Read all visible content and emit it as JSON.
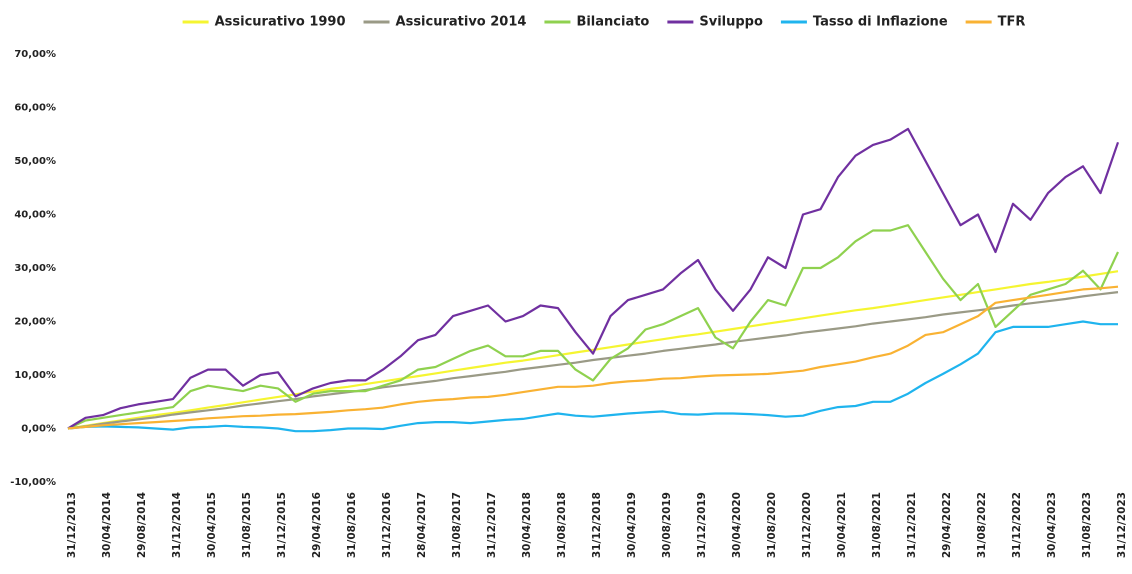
{
  "chart_data": {
    "type": "line",
    "categories": [
      "31/12/2013",
      null,
      "30/04/2014",
      null,
      "29/08/2014",
      null,
      "31/12/2014",
      null,
      "30/04/2015",
      null,
      "31/08/2015",
      null,
      "31/12/2015",
      null,
      "29/04/2016",
      null,
      "31/08/2016",
      null,
      "31/12/2016",
      null,
      "28/04/2017",
      null,
      "31/08/2017",
      null,
      "31/12/2017",
      null,
      "30/04/2018",
      null,
      "31/08/2018",
      null,
      "31/12/2018",
      null,
      "30/04/2019",
      null,
      "30/08/2019",
      null,
      "31/12/2019",
      null,
      "30/04/2020",
      null,
      "31/08/2020",
      null,
      "31/12/2020",
      null,
      "30/04/2021",
      null,
      "31/08/2021",
      null,
      "31/12/2021",
      null,
      "29/04/2022",
      null,
      "31/08/2022",
      null,
      "31/12/2022",
      null,
      "30/04/2023",
      null,
      "31/08/2023",
      null,
      "31/12/2023"
    ],
    "series": [
      {
        "name": "Assicurativo 1990",
        "color": "#f5f531",
        "values": [
          0,
          0.5,
          1,
          1.5,
          2,
          2.5,
          2.9,
          3.4,
          3.9,
          4.4,
          4.9,
          5.4,
          5.9,
          6.4,
          6.9,
          7.4,
          7.8,
          8.3,
          8.8,
          9.3,
          9.8,
          10.3,
          10.8,
          11.3,
          11.8,
          12.3,
          12.7,
          13.2,
          13.7,
          14.2,
          14.7,
          15.2,
          15.7,
          16.2,
          16.7,
          17.2,
          17.6,
          18.1,
          18.6,
          19.1,
          19.6,
          20.1,
          20.6,
          21.1,
          21.6,
          22.1,
          22.5,
          23,
          23.5,
          24,
          24.5,
          25,
          25.5,
          26,
          26.5,
          27,
          27.4,
          27.9,
          28.4,
          28.9,
          29.4
        ]
      },
      {
        "name": "Assicurativo 2014",
        "color": "#9a9a86",
        "values": [
          0,
          0.4,
          0.9,
          1.3,
          1.7,
          2.1,
          2.6,
          3,
          3.4,
          3.8,
          4.3,
          4.7,
          5.1,
          5.5,
          6,
          6.4,
          6.8,
          7.2,
          7.7,
          8.1,
          8.5,
          8.9,
          9.4,
          9.8,
          10.2,
          10.6,
          11.1,
          11.5,
          11.9,
          12.3,
          12.8,
          13.2,
          13.6,
          14,
          14.5,
          14.9,
          15.3,
          15.7,
          16.2,
          16.6,
          17,
          17.4,
          17.9,
          18.3,
          18.7,
          19.1,
          19.6,
          20,
          20.4,
          20.8,
          21.3,
          21.7,
          22.1,
          22.5,
          23,
          23.4,
          23.8,
          24.2,
          24.7,
          25.1,
          25.5
        ]
      },
      {
        "name": "Bilanciato",
        "color": "#8fd14f",
        "values": [
          0,
          1.5,
          2,
          2.5,
          3,
          3.5,
          4,
          7,
          8,
          7.5,
          7,
          8,
          7.5,
          5,
          6.5,
          7,
          7,
          7,
          8,
          9,
          11,
          11.5,
          13,
          14.5,
          15.5,
          13.5,
          13.5,
          14.5,
          14.5,
          11,
          9,
          13,
          15,
          18.5,
          19.5,
          21,
          22.5,
          17,
          15,
          20,
          24,
          23,
          30,
          30,
          32,
          35,
          37,
          37,
          38,
          33,
          28,
          24,
          27,
          19,
          22,
          25,
          26,
          27,
          29.5,
          26,
          33
        ]
      },
      {
        "name": "Sviluppo",
        "color": "#7030a0",
        "values": [
          0,
          2,
          2.5,
          3.8,
          4.5,
          5,
          5.5,
          9.5,
          11,
          11,
          8,
          10,
          10.5,
          6,
          7.5,
          8.5,
          9,
          9,
          11,
          13.5,
          16.5,
          17.5,
          21,
          22,
          23,
          20,
          21,
          23,
          22.5,
          18,
          14,
          21,
          24,
          25,
          26,
          29,
          31.5,
          26,
          22,
          26,
          32,
          30,
          40,
          41,
          47,
          51,
          53,
          54,
          56,
          50,
          44,
          38,
          40,
          33,
          42,
          39,
          44,
          47,
          49,
          44,
          53.5
        ]
      },
      {
        "name": "Tasso di Inflazione",
        "color": "#1fb4ee",
        "values": [
          0,
          0.3,
          0.4,
          0.3,
          0.2,
          0,
          -0.2,
          0.2,
          0.3,
          0.5,
          0.3,
          0.2,
          0,
          -0.5,
          -0.5,
          -0.3,
          0,
          0,
          -0.1,
          0.5,
          1,
          1.2,
          1.2,
          1,
          1.3,
          1.6,
          1.8,
          2.3,
          2.8,
          2.4,
          2.2,
          2.5,
          2.8,
          3,
          3.2,
          2.7,
          2.6,
          2.8,
          2.8,
          2.7,
          2.5,
          2.2,
          2.4,
          3.3,
          4,
          4.2,
          5,
          5,
          6.5,
          8.5,
          10.2,
          12,
          14,
          18,
          19,
          19,
          19,
          19.5,
          20,
          19.5,
          19.5
        ]
      },
      {
        "name": "TFR",
        "color": "#f9b233",
        "values": [
          0,
          0.3,
          0.6,
          0.8,
          1,
          1.2,
          1.4,
          1.6,
          1.9,
          2.1,
          2.3,
          2.4,
          2.6,
          2.7,
          2.9,
          3.1,
          3.4,
          3.6,
          3.9,
          4.5,
          5,
          5.3,
          5.5,
          5.8,
          5.9,
          6.3,
          6.8,
          7.3,
          7.8,
          7.8,
          8,
          8.5,
          8.8,
          9,
          9.3,
          9.4,
          9.7,
          9.9,
          10,
          10.1,
          10.2,
          10.5,
          10.8,
          11.5,
          12,
          12.5,
          13.3,
          14,
          15.5,
          17.5,
          18,
          19.5,
          21,
          23.5,
          24,
          24.5,
          25,
          25.5,
          26,
          26.2,
          26.5
        ]
      }
    ],
    "ylim": [
      -10,
      70
    ],
    "yticks": [
      {
        "value": -10,
        "label": "-10,00%"
      },
      {
        "value": 0,
        "label": "0,00%"
      },
      {
        "value": 10,
        "label": "10,00%"
      },
      {
        "value": 20,
        "label": "20,00%"
      },
      {
        "value": 30,
        "label": "30,00%"
      },
      {
        "value": 40,
        "label": "40,00%"
      },
      {
        "value": 50,
        "label": "50,00%"
      },
      {
        "value": 60,
        "label": "60,00%"
      },
      {
        "value": 70,
        "label": "70,00%"
      }
    ],
    "grid": false,
    "legend": "top"
  }
}
